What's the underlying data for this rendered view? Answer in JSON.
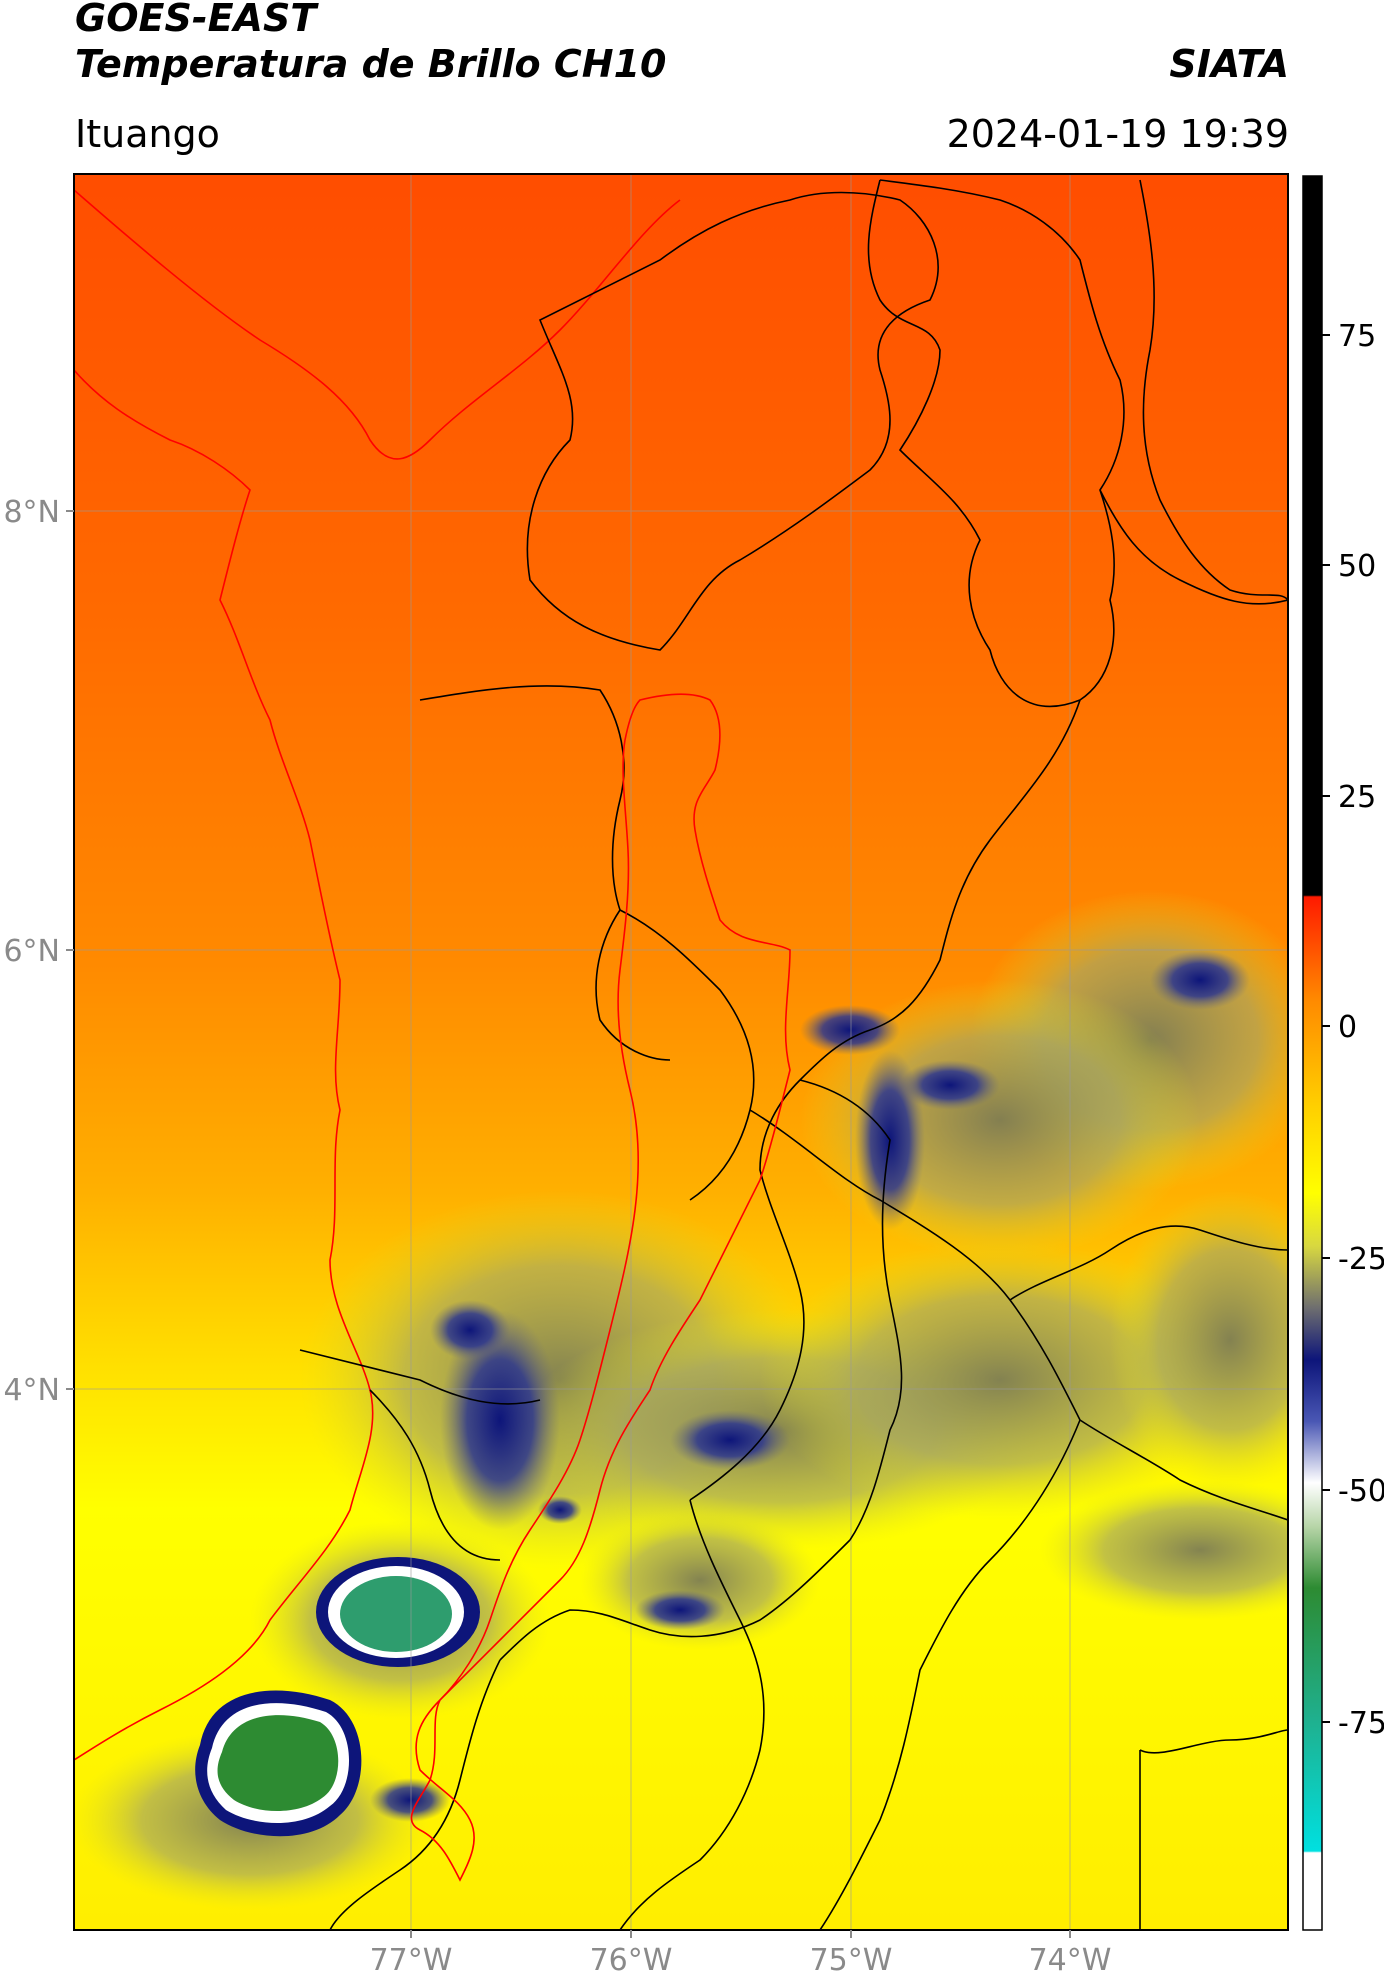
{
  "header": {
    "satellite": "GOES-EAST",
    "product": "Temperatura de Brillo CH10",
    "organization": "SIATA",
    "location": "Ituango",
    "datetime": "2024-01-19 19:39"
  },
  "map": {
    "lat_labels": [
      "8°N",
      "6°N",
      "4°N"
    ],
    "lon_labels": [
      "77°W",
      "76°W",
      "75°W",
      "74°W"
    ]
  },
  "colorbar": {
    "ticks": [
      "75",
      "50",
      "25",
      "0",
      "-25",
      "-50",
      "-75"
    ],
    "colors": {
      "black": "#000000",
      "red": "#ff1a00",
      "orange": "#ff8a00",
      "yellow": "#ffff00",
      "olive": "#8c8c4a",
      "navy": "#0d157a",
      "white": "#ffffff",
      "green": "#2d8b32",
      "teal": "#1fb08e",
      "cyan": "#00e0e0"
    }
  }
}
